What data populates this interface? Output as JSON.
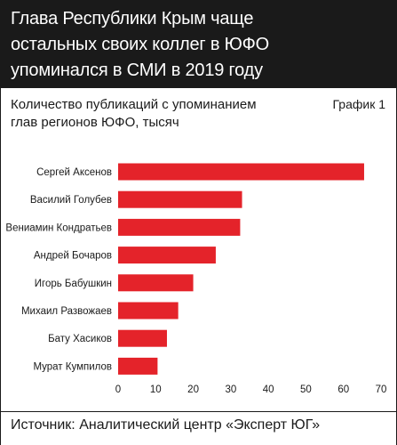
{
  "header": {
    "title_lines": [
      "Глава Республики Крым чаще",
      "остальных своих коллег в ЮФО",
      "упоминался в СМИ в 2019 году"
    ]
  },
  "subtitle": {
    "lines": [
      "Количество публикаций с упоминанием",
      "глав регионов ЮФО, тысяч"
    ]
  },
  "graph_label": "График 1",
  "source": "Источник: Аналитический центр «Эксперт ЮГ»",
  "colors": {
    "bar": "#e4232a",
    "header_bg": "#1a1a1a",
    "text": "#1a1a1a"
  },
  "chart_data": {
    "type": "bar",
    "orientation": "horizontal",
    "title": "Количество публикаций с упоминанием глав регионов ЮФО, тысяч",
    "categories": [
      "Сергей Аксенов",
      "Василий Голубев",
      "Вениамин Кондратьев",
      "Андрей Бочаров",
      "Игорь Бабушкин",
      "Михаил Развожаев",
      "Бату Хасиков",
      "Мурат Кумпилов"
    ],
    "values": [
      65.5,
      33,
      32.5,
      26,
      20,
      16,
      13,
      10.5
    ],
    "xlim": [
      0,
      70
    ],
    "xticks": [
      0,
      10,
      20,
      30,
      40,
      50,
      60,
      70
    ],
    "grid": false,
    "legend": "none"
  }
}
